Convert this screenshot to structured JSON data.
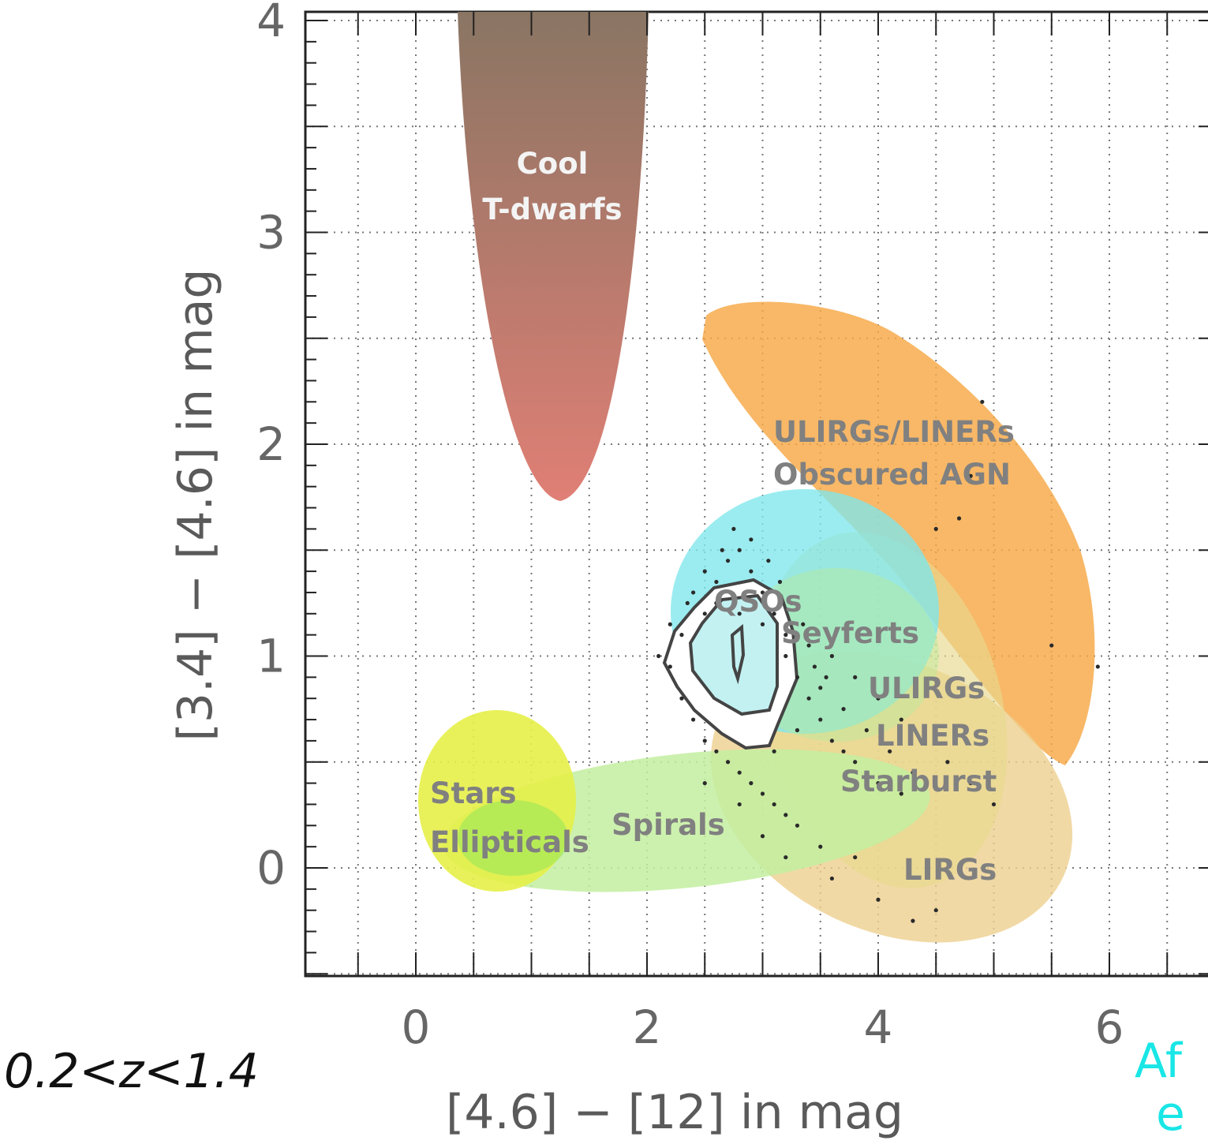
{
  "chart_data": {
    "type": "scatter",
    "title": "",
    "xlabel": "[4.6] − [12]  in mag",
    "ylabel": "[3.4] − [4.6] in mag",
    "xlim": [
      -1,
      7.5
    ],
    "ylim": [
      -0.5,
      4.1
    ],
    "x_ticks": [
      0,
      2,
      4,
      6
    ],
    "y_ticks": [
      0,
      1,
      2,
      3,
      4
    ],
    "grid": true,
    "annotation": "0.2<z<1.4",
    "partial_text": [
      "Af",
      "e"
    ],
    "regions": [
      {
        "label": "Cool\nT-dwarfs",
        "color": "#b06050"
      },
      {
        "label": "ULIRGs/LINERs\nObscured AGN",
        "color": "#f5a64a"
      },
      {
        "label": "QSOs",
        "color": "#7ee8ee"
      },
      {
        "label": "Seyferts",
        "color": "#bfe89a"
      },
      {
        "label": "ULIRGs\nLINERs\nStarburst",
        "color": "#eed596"
      },
      {
        "label": "LIRGs",
        "color": "#eed596"
      },
      {
        "label": "Spirals",
        "color": "#c6eea2"
      },
      {
        "label": "Stars\nEllipticals",
        "color": "#e8f04c"
      }
    ],
    "series": [
      {
        "points": [
          [
            2.3,
            1.1
          ],
          [
            2.5,
            1.2
          ],
          [
            2.6,
            1.35
          ],
          [
            2.7,
            1.45
          ],
          [
            2.8,
            1.5
          ],
          [
            2.9,
            1.4
          ],
          [
            3.0,
            1.3
          ],
          [
            3.1,
            1.2
          ],
          [
            3.2,
            1.0
          ],
          [
            3.3,
            0.9
          ],
          [
            3.4,
            0.8
          ],
          [
            3.5,
            0.7
          ],
          [
            3.6,
            0.6
          ],
          [
            3.7,
            0.55
          ],
          [
            3.8,
            0.5
          ],
          [
            3.9,
            0.45
          ],
          [
            4.0,
            0.4
          ],
          [
            4.2,
            0.35
          ],
          [
            2.2,
            0.95
          ],
          [
            2.3,
            0.8
          ],
          [
            2.4,
            0.7
          ],
          [
            2.5,
            0.6
          ],
          [
            2.6,
            0.55
          ],
          [
            2.7,
            0.5
          ],
          [
            2.8,
            0.45
          ],
          [
            2.9,
            0.4
          ],
          [
            3.0,
            0.35
          ],
          [
            3.1,
            0.3
          ],
          [
            3.2,
            0.25
          ],
          [
            3.3,
            0.2
          ],
          [
            2.4,
            1.3
          ],
          [
            2.6,
            1.25
          ],
          [
            2.8,
            1.2
          ],
          [
            3.0,
            1.15
          ],
          [
            3.2,
            1.1
          ],
          [
            3.4,
            1.05
          ],
          [
            3.6,
            1.0
          ],
          [
            3.8,
            0.9
          ],
          [
            4.0,
            0.8
          ],
          [
            4.2,
            0.7
          ],
          [
            4.4,
            0.6
          ],
          [
            4.6,
            0.5
          ],
          [
            4.8,
            0.4
          ],
          [
            5.0,
            0.3
          ],
          [
            5.5,
            1.05
          ],
          [
            5.9,
            0.95
          ],
          [
            4.5,
            1.6
          ],
          [
            4.7,
            1.65
          ],
          [
            4.8,
            1.85
          ],
          [
            4.9,
            2.2
          ],
          [
            3.2,
            0.05
          ],
          [
            3.6,
            -0.05
          ],
          [
            4.0,
            -0.15
          ],
          [
            4.3,
            -0.25
          ],
          [
            4.5,
            -0.2
          ],
          [
            3.0,
            0.15
          ],
          [
            3.5,
            0.1
          ],
          [
            3.8,
            0.05
          ],
          [
            2.8,
            0.3
          ],
          [
            2.5,
            0.4
          ],
          [
            3.1,
            0.55
          ],
          [
            3.3,
            0.65
          ],
          [
            3.5,
            0.85
          ],
          [
            3.7,
            0.75
          ],
          [
            3.9,
            0.65
          ],
          [
            4.1,
            0.55
          ],
          [
            4.3,
            0.45
          ],
          [
            2.1,
            1.0
          ],
          [
            2.2,
            1.15
          ],
          [
            2.35,
            1.25
          ],
          [
            2.5,
            1.4
          ],
          [
            2.65,
            1.5
          ],
          [
            2.75,
            1.6
          ],
          [
            2.9,
            1.55
          ],
          [
            3.05,
            1.45
          ],
          [
            3.15,
            1.35
          ],
          [
            3.25,
            1.25
          ],
          [
            3.35,
            1.15
          ],
          [
            3.45,
            0.95
          ],
          [
            3.55,
            0.9
          ]
        ]
      }
    ]
  }
}
